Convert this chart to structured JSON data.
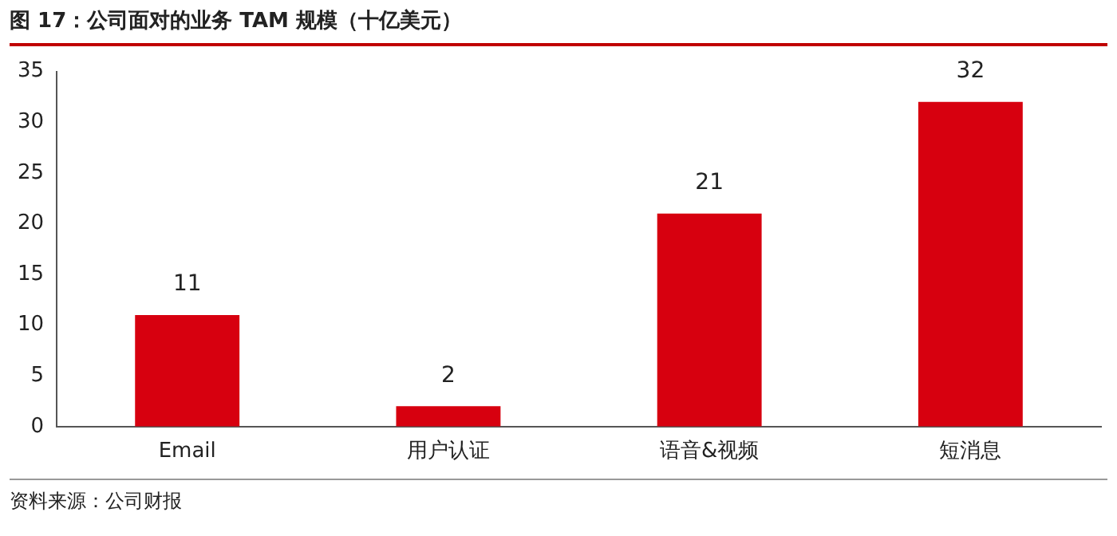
{
  "chart_data": {
    "type": "bar",
    "title": "图 17：公司面对的业务 TAM 规模（十亿美元）",
    "categories": [
      "Email",
      "用户认证",
      "语音&视频",
      "短消息"
    ],
    "values": [
      11,
      2,
      21,
      32
    ],
    "color": "#d7000f",
    "ylim": [
      0,
      35
    ],
    "yticks": [
      0,
      5,
      10,
      15,
      20,
      25,
      30,
      35
    ],
    "grid": false,
    "legend": false,
    "data_labels": true,
    "annotations": [
      "资料来源：公司财报"
    ]
  }
}
